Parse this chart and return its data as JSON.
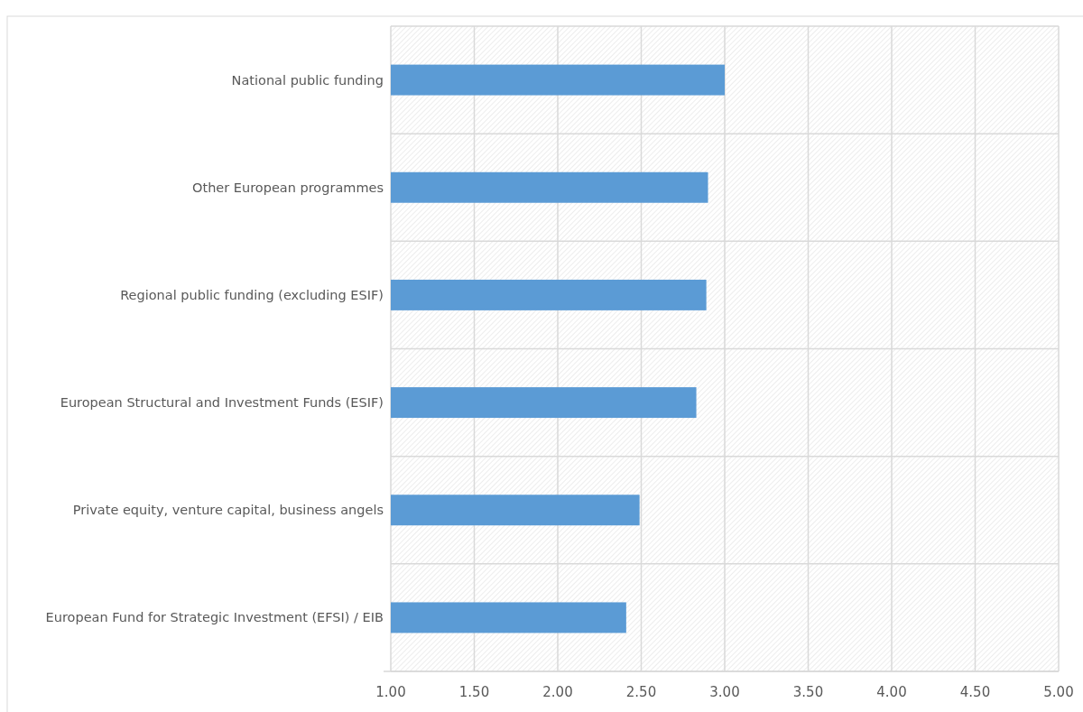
{
  "chart_data": {
    "type": "bar",
    "orientation": "horizontal",
    "categories": [
      "National public funding",
      "Other European programmes",
      "Regional public funding (excluding ESIF)",
      "European Structural and Investment Funds (ESIF)",
      "Private equity, venture capital, business angels",
      "European Fund for Strategic Investment (EFSI) / EIB"
    ],
    "values": [
      3.0,
      2.9,
      2.89,
      2.83,
      2.49,
      2.41
    ],
    "color": "#5b9bd5",
    "xlim": [
      1,
      5
    ],
    "xticks": [
      {
        "value": 1,
        "label": "1.00"
      },
      {
        "value": 1.5,
        "label": "1.50"
      },
      {
        "value": 2,
        "label": "2.00"
      },
      {
        "value": 2.5,
        "label": "2.50"
      },
      {
        "value": 3,
        "label": "3.00"
      },
      {
        "value": 3.5,
        "label": "3.50"
      },
      {
        "value": 4,
        "label": "4.00"
      },
      {
        "value": 4.5,
        "label": "4.50"
      },
      {
        "value": 5,
        "label": "5.00"
      }
    ],
    "grid": true
  }
}
